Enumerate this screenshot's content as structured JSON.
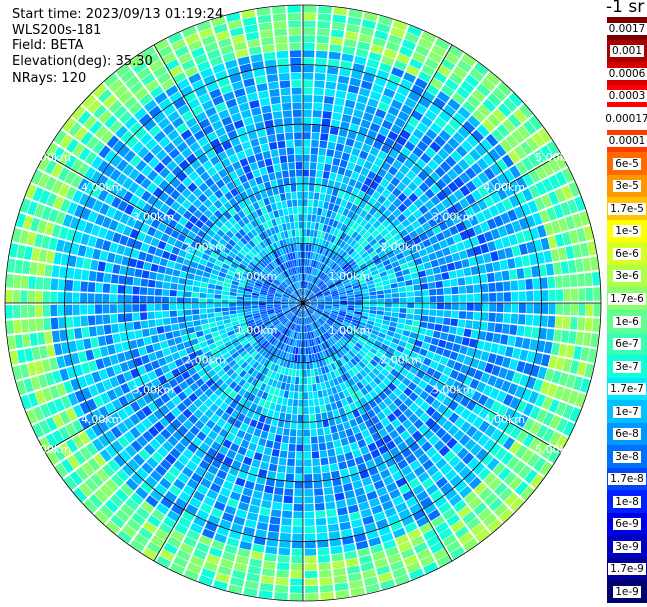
{
  "header": {
    "start_time": "Start time: 2023/09/13 01:19:24",
    "instrument": "WLS200s-181",
    "field": "Field: BETA",
    "elevation": "Elevation(deg): 35.30",
    "nrays": "NRays: 120"
  },
  "colorbar": {
    "unit": "-1 sr",
    "entries": [
      {
        "label": "0.0017",
        "color": "#7a0000"
      },
      {
        "label": "0.001",
        "color": "#aa0000"
      },
      {
        "label": "0.0006",
        "color": "#d40000"
      },
      {
        "label": "0.0003",
        "color": "#ff0000"
      },
      {
        "label": "0.00017",
        "color": "#ffffff"
      },
      {
        "label": "0.0001",
        "color": "#ff3c00"
      },
      {
        "label": "6e-5",
        "color": "#ff6a00"
      },
      {
        "label": "3e-5",
        "color": "#ff9800"
      },
      {
        "label": "1.7e-5",
        "color": "#ffc400"
      },
      {
        "label": "1e-5",
        "color": "#ffff00"
      },
      {
        "label": "6e-6",
        "color": "#d8ff24"
      },
      {
        "label": "3e-6",
        "color": "#b0ff48"
      },
      {
        "label": "1.7e-6",
        "color": "#88ff6c"
      },
      {
        "label": "1e-6",
        "color": "#60ff90"
      },
      {
        "label": "6e-7",
        "color": "#38ffb4"
      },
      {
        "label": "3e-7",
        "color": "#10ffd8"
      },
      {
        "label": "1.7e-7",
        "color": "#00e8ff"
      },
      {
        "label": "1e-7",
        "color": "#00c0ff"
      },
      {
        "label": "6e-8",
        "color": "#0098ff"
      },
      {
        "label": "3e-8",
        "color": "#0070ff"
      },
      {
        "label": "1.7e-8",
        "color": "#0048ff"
      },
      {
        "label": "1e-8",
        "color": "#0020ff"
      },
      {
        "label": "6e-9",
        "color": "#0000e8"
      },
      {
        "label": "3e-9",
        "color": "#0000c0"
      },
      {
        "label": "1.7e-9",
        "color": "#000098"
      },
      {
        "label": "1e-9",
        "color": "#000070"
      }
    ]
  },
  "chart_data": {
    "type": "heatmap",
    "projection": "polar (PPI scan)",
    "field": "BETA",
    "nrays": 120,
    "range_rings_km": [
      1,
      2,
      3,
      4,
      5
    ],
    "range_ring_labels": [
      "1.00km",
      "2.00km",
      "3.00km",
      "4.00km",
      "5.00km"
    ],
    "max_range_km": 5.0,
    "spoke_angles_deg": [
      0,
      30,
      60,
      90,
      120,
      150,
      180,
      210,
      240,
      270,
      300,
      330
    ],
    "log_scale": true,
    "value_range": [
      1e-09,
      0.0017
    ],
    "band_summary": [
      {
        "range_km": [
          0.0,
          1.0
        ],
        "typical_value": 6e-08
      },
      {
        "range_km": [
          1.0,
          2.0
        ],
        "typical_value": 1.7e-07
      },
      {
        "range_km": [
          2.0,
          3.5
        ],
        "typical_value": 1e-07
      },
      {
        "range_km": [
          3.5,
          4.3
        ],
        "typical_value": 1.7e-07
      },
      {
        "range_km": [
          4.3,
          5.0
        ],
        "typical_value": 1.7e-06
      }
    ]
  }
}
